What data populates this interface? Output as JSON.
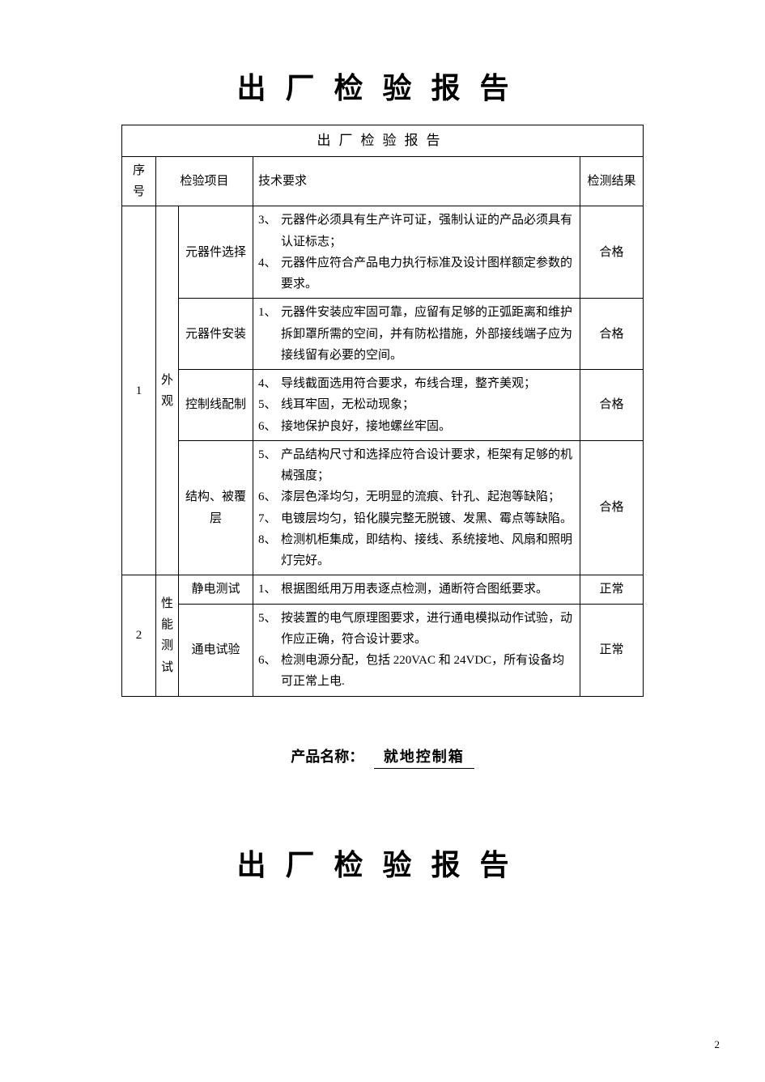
{
  "title": "出厂检验报告",
  "table": {
    "header_title": "出厂检验报告",
    "columns": [
      "序号",
      "检验项目",
      "技术要求",
      "检测结果"
    ],
    "groups": [
      {
        "seq": "1",
        "category": "外观",
        "rows": [
          {
            "item": "元器件选择",
            "reqs": [
              {
                "n": "3、",
                "t": "元器件必须具有生产许可证，强制认证的产品必须具有认证标志；"
              },
              {
                "n": "4、",
                "t": "元器件应符合产品电力执行标准及设计图样额定参数的要求。"
              }
            ],
            "result": "合格"
          },
          {
            "item": "元器件安装",
            "reqs": [
              {
                "n": "1、",
                "t": "元器件安装应牢固可靠，应留有足够的正弧距离和维护拆卸罩所需的空间，并有防松措施，外部接线端子应为接线留有必要的空间。"
              }
            ],
            "result": "合格"
          },
          {
            "item": "控制线配制",
            "reqs": [
              {
                "n": "4、",
                "t": "导线截面选用符合要求，布线合理，整齐美观；"
              },
              {
                "n": "5、",
                "t": "线耳牢固，无松动现象；"
              },
              {
                "n": "6、",
                "t": "接地保护良好，接地螺丝牢固。"
              }
            ],
            "result": "合格"
          },
          {
            "item": "结构、被覆层",
            "reqs": [
              {
                "n": "5、",
                "t": "产品结构尺寸和选择应符合设计要求，柜架有足够的机械强度；"
              },
              {
                "n": "6、",
                "t": "漆层色泽均匀，无明显的流痕、针孔、起泡等缺陷；"
              },
              {
                "n": "7、",
                "t": "电镀层均匀，铅化膜完整无脱镀、发黑、霉点等缺陷。"
              },
              {
                "n": "8、",
                "t": "检测机柜集成，即结构、接线、系统接地、风扇和照明灯完好。"
              }
            ],
            "result": "合格"
          }
        ]
      },
      {
        "seq": "2",
        "category": "性能测试",
        "rows": [
          {
            "item": "静电测试",
            "reqs": [
              {
                "n": "1、",
                "t": "根据图纸用万用表逐点检测，通断符合图纸要求。"
              }
            ],
            "result": "正常"
          },
          {
            "item": "通电试验",
            "reqs": [
              {
                "n": "5、",
                "t": "按装置的电气原理图要求，进行通电模拟动作试验，动作应正确，符合设计要求。"
              },
              {
                "n": "6、",
                "t": "检测电源分配，包括 220VAC 和 24VDC，所有设备均可正常上电."
              }
            ],
            "result": "正常"
          }
        ]
      }
    ]
  },
  "product": {
    "label": "产品名称：",
    "value": "就地控制箱"
  },
  "second_title": "出厂检验报告",
  "page_number": "2"
}
